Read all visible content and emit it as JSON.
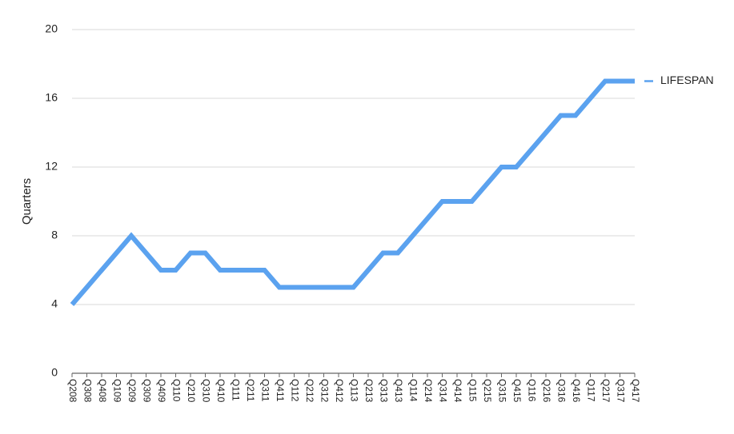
{
  "chart_data": {
    "type": "line",
    "title": "",
    "xlabel": "",
    "ylabel": "Quarters",
    "ylim": [
      0,
      20
    ],
    "yticks": [
      0,
      4,
      8,
      12,
      16,
      20
    ],
    "grid": true,
    "legend_position": "right",
    "categories": [
      "Q208",
      "Q308",
      "Q408",
      "Q109",
      "Q209",
      "Q309",
      "Q409",
      "Q110",
      "Q210",
      "Q310",
      "Q410",
      "Q111",
      "Q211",
      "Q311",
      "Q411",
      "Q112",
      "Q212",
      "Q312",
      "Q412",
      "Q113",
      "Q213",
      "Q313",
      "Q413",
      "Q114",
      "Q214",
      "Q314",
      "Q414",
      "Q115",
      "Q215",
      "Q315",
      "Q415",
      "Q116",
      "Q216",
      "Q316",
      "Q416",
      "Q117",
      "Q217",
      "Q317",
      "Q417"
    ],
    "series": [
      {
        "name": "LIFESPAN",
        "color": "#5ba2ef",
        "values": [
          4,
          5,
          6,
          7,
          8,
          7,
          6,
          6,
          7,
          7,
          6,
          6,
          6,
          6,
          5,
          5,
          5,
          5,
          5,
          5,
          6,
          7,
          7,
          8,
          9,
          10,
          10,
          10,
          11,
          12,
          12,
          13,
          14,
          15,
          15,
          16,
          17,
          17,
          17
        ]
      }
    ]
  }
}
